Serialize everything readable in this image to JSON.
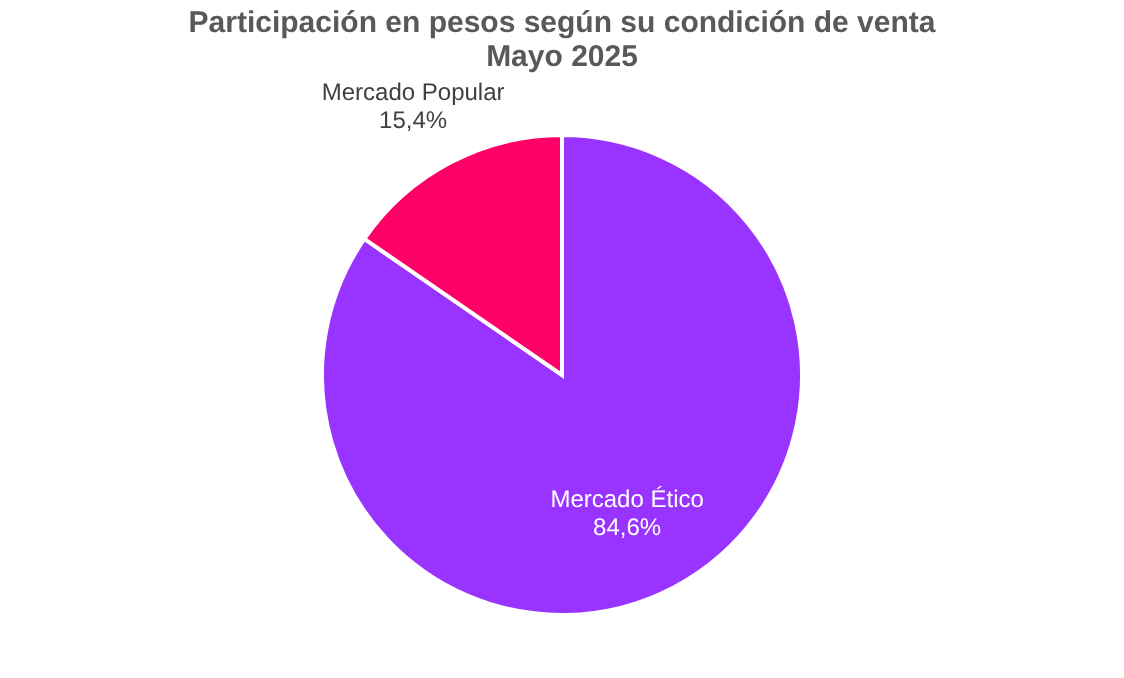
{
  "chart_data": {
    "type": "pie",
    "title": [
      "Participación en pesos según su condición de venta",
      "Mayo 2025"
    ],
    "categories": [
      "Mercado Ético",
      "Mercado Popular"
    ],
    "values": [
      84.6,
      15.4
    ],
    "colors": [
      "#9933ff",
      "#ff0066"
    ],
    "value_labels": [
      "84,6%",
      "15,4%"
    ],
    "legend": false
  }
}
